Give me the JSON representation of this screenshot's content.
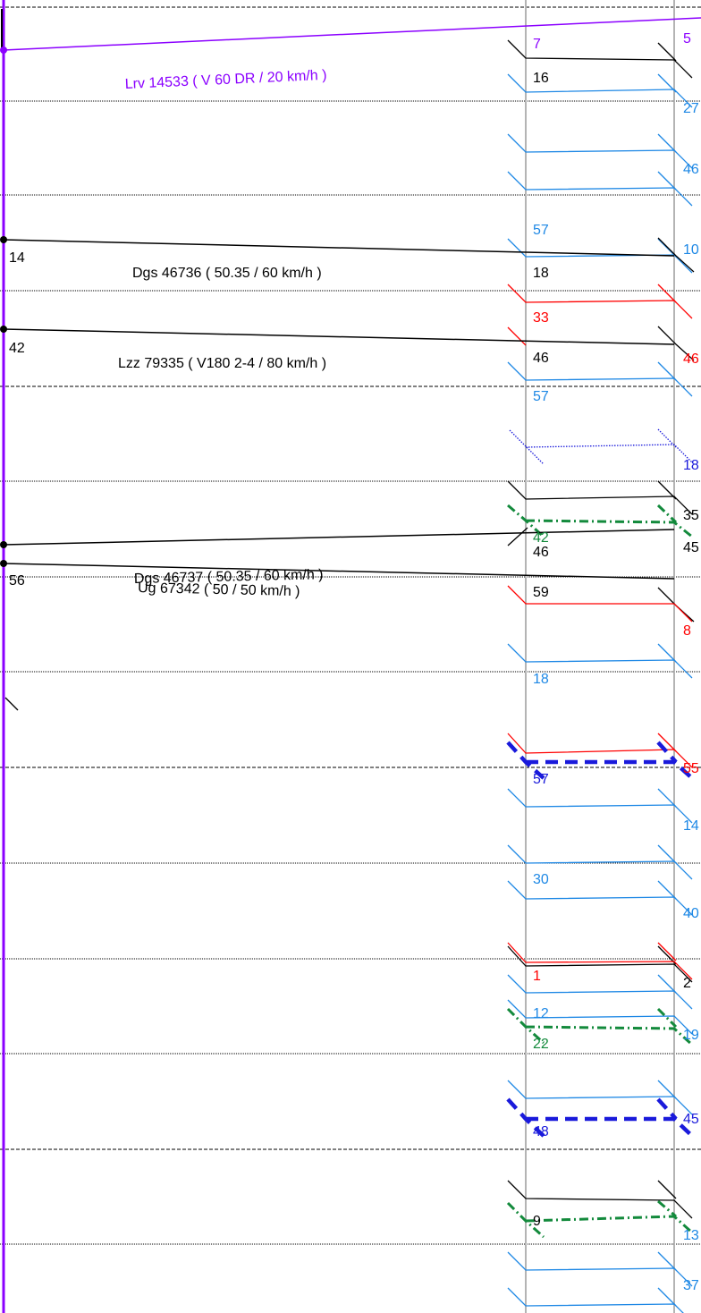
{
  "colors": {
    "black": "#000000",
    "purple": "#8B00FF",
    "red": "#FF0000",
    "lightblue": "#1E88E5",
    "darkblue": "#1A1ADB",
    "green": "#138A3C",
    "track": "#B4B4B4"
  },
  "trains": [
    {
      "text": "Lrv 14533 ( V 60 DR / 20 km/h )",
      "color": "purple"
    },
    {
      "text": "Dgs 46736 ( 50.35 / 60 km/h )",
      "color": "black"
    },
    {
      "text": "Lzz 79335 ( V180 2-4 / 80 km/h )",
      "color": "black"
    },
    {
      "text": "Dgs 46737 ( 50.35 / 60 km/h )",
      "color": "black"
    },
    {
      "text": "Ug 67342 ( 50 / 50 km/h )",
      "color": "black"
    }
  ],
  "entry_minutes": [
    "14",
    "42",
    "56"
  ],
  "minutes": [
    {
      "text": "7",
      "color": "purple"
    },
    {
      "text": "5",
      "color": "purple"
    },
    {
      "text": "16",
      "color": "black"
    },
    {
      "text": "27",
      "color": "lightblue"
    },
    {
      "text": "46",
      "color": "lightblue"
    },
    {
      "text": "57",
      "color": "lightblue"
    },
    {
      "text": "10",
      "color": "lightblue"
    },
    {
      "text": "18",
      "color": "black"
    },
    {
      "text": "33",
      "color": "red"
    },
    {
      "text": "46",
      "color": "black"
    },
    {
      "text": "46",
      "color": "red"
    },
    {
      "text": "57",
      "color": "lightblue"
    },
    {
      "text": "18",
      "color": "darkblue"
    },
    {
      "text": "35",
      "color": "black"
    },
    {
      "text": "42",
      "color": "green"
    },
    {
      "text": "46",
      "color": "black"
    },
    {
      "text": "45",
      "color": "black"
    },
    {
      "text": "59",
      "color": "black"
    },
    {
      "text": "8",
      "color": "red"
    },
    {
      "text": "18",
      "color": "lightblue"
    },
    {
      "text": "55",
      "color": "red"
    },
    {
      "text": "57",
      "color": "darkblue"
    },
    {
      "text": "14",
      "color": "lightblue"
    },
    {
      "text": "30",
      "color": "lightblue"
    },
    {
      "text": "40",
      "color": "lightblue"
    },
    {
      "text": "1",
      "color": "red"
    },
    {
      "text": "2",
      "color": "black"
    },
    {
      "text": "12",
      "color": "lightblue"
    },
    {
      "text": "19",
      "color": "lightblue"
    },
    {
      "text": "22",
      "color": "green"
    },
    {
      "text": "48",
      "color": "darkblue"
    },
    {
      "text": "45",
      "color": "darkblue"
    },
    {
      "text": "9",
      "color": "black"
    },
    {
      "text": "13",
      "color": "lightblue"
    },
    {
      "text": "37",
      "color": "lightblue"
    }
  ]
}
